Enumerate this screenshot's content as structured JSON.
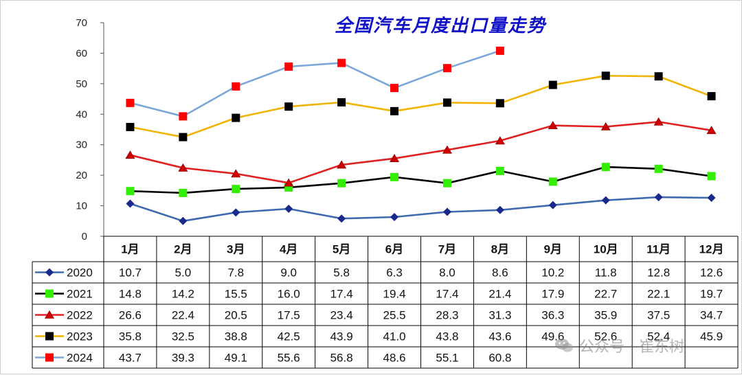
{
  "watermark": "公众号 · 崔东树",
  "colors": {
    "2020": "#3f6ab0",
    "2021": "#000000",
    "2022": "#e02020",
    "2023": "#f0b400",
    "2024": "#7aa7d8",
    "marker_2020": "#1a2a8c",
    "marker_2021": "#33ee00",
    "marker_2022": "#cc0000",
    "marker_2023": "#000000",
    "marker_2024": "#ff0000"
  },
  "chart_data": {
    "type": "line",
    "title": "全国汽车月度出口量走势",
    "categories": [
      "1月",
      "2月",
      "3月",
      "4月",
      "5月",
      "6月",
      "7月",
      "8月",
      "9月",
      "10月",
      "11月",
      "12月"
    ],
    "ylim": [
      0,
      70
    ],
    "yticks": [
      0,
      10,
      20,
      30,
      40,
      50,
      60,
      70
    ],
    "grid": false,
    "legend": "table-left",
    "series": [
      {
        "name": "2020",
        "marker": "diamond",
        "values": [
          10.7,
          5.0,
          7.8,
          9.0,
          5.8,
          6.3,
          8.0,
          8.6,
          10.2,
          11.8,
          12.8,
          12.6
        ],
        "labels": [
          "10.7",
          "5.0",
          "7.8",
          "9.0",
          "5.8",
          "6.3",
          "8.0",
          "8.6",
          "10.2",
          "11.8",
          "12.8",
          "12.6"
        ]
      },
      {
        "name": "2021",
        "marker": "square",
        "values": [
          14.8,
          14.2,
          15.5,
          16.0,
          17.4,
          19.4,
          17.4,
          21.4,
          17.9,
          22.7,
          22.1,
          19.7
        ],
        "labels": [
          "14.8",
          "14.2",
          "15.5",
          "16.0",
          "17.4",
          "19.4",
          "17.4",
          "21.4",
          "17.9",
          "22.7",
          "22.1",
          "19.7"
        ]
      },
      {
        "name": "2022",
        "marker": "triangle",
        "values": [
          26.6,
          22.4,
          20.5,
          17.5,
          23.4,
          25.5,
          28.3,
          31.3,
          36.3,
          35.9,
          37.5,
          34.7
        ],
        "labels": [
          "26.6",
          "22.4",
          "20.5",
          "17.5",
          "23.4",
          "25.5",
          "28.3",
          "31.3",
          "36.3",
          "35.9",
          "37.5",
          "34.7"
        ]
      },
      {
        "name": "2023",
        "marker": "square",
        "values": [
          35.8,
          32.5,
          38.8,
          42.5,
          43.9,
          41.0,
          43.8,
          43.6,
          49.6,
          52.6,
          52.4,
          45.9
        ],
        "labels": [
          "35.8",
          "32.5",
          "38.8",
          "42.5",
          "43.9",
          "41.0",
          "43.8",
          "43.6",
          "49.6",
          "52.6",
          "52.4",
          "45.9"
        ]
      },
      {
        "name": "2024",
        "marker": "square",
        "values": [
          43.7,
          39.3,
          49.1,
          55.6,
          56.8,
          48.6,
          55.1,
          60.8,
          null,
          null,
          null,
          null
        ],
        "labels": [
          "43.7",
          "39.3",
          "49.1",
          "55.6",
          "56.8",
          "48.6",
          "55.1",
          "60.8",
          "",
          "",
          "",
          ""
        ]
      }
    ]
  }
}
